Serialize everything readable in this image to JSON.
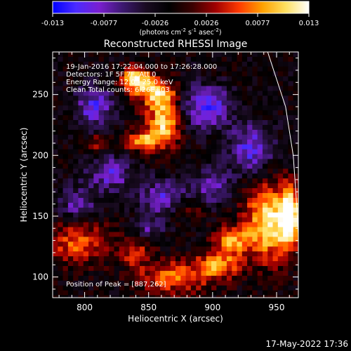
{
  "colors": {
    "background": "#000000",
    "foreground": "#ffffff",
    "limb": "#ffffff"
  },
  "colorbar": {
    "ticks": [
      "-0.013",
      "-0.0077",
      "-0.0026",
      "0.0026",
      "0.0077",
      "0.013"
    ],
    "units_prefix": "(photons cm",
    "exp1": "-2",
    "units_mid": " s",
    "exp2": "-1",
    "units_mid2": " asec",
    "exp3": "-2",
    "units_suffix": ")",
    "colormap": [
      "#0000ff",
      "#4b2bff",
      "#7a1fd0",
      "#3c1870",
      "#1a0b22",
      "#000000",
      "#3a0000",
      "#a00000",
      "#ff3a00",
      "#ffa000",
      "#ffe060",
      "#ffffff"
    ]
  },
  "chart_data": {
    "type": "heatmap",
    "title": "Reconstructed RHESSI Image",
    "xlabel": "Heliocentric X (arcsec)",
    "ylabel": "Heliocentric Y (arcsec)",
    "xlim": [
      775,
      967
    ],
    "ylim": [
      83,
      285
    ],
    "xticks": [
      800,
      850,
      900,
      950
    ],
    "yticks": [
      100,
      150,
      200,
      250
    ],
    "value_range": [
      -0.013,
      0.013
    ],
    "info_lines": [
      "19-Jan-2016 17:22:04.000 to 17:26:28.000",
      "Detectors: 1F 5F 7F, Att 0",
      "Energy Range: 12.0 - 25.0 keV",
      "Clean     Total counts: 6.26E+03"
    ],
    "peak_label": "Position of Peak = [887,262]",
    "peak": {
      "x": 887,
      "y": 262
    },
    "limb_points": [
      [
        943,
        285
      ],
      [
        957,
        240
      ],
      [
        963,
        200
      ],
      [
        965,
        170
      ],
      [
        967,
        135
      ]
    ],
    "sources": [
      {
        "x": 840,
        "y": 262,
        "sx": 8,
        "sy": 8,
        "amp": 0.013
      },
      {
        "x": 858,
        "y": 250,
        "sx": 10,
        "sy": 9,
        "amp": 0.012
      },
      {
        "x": 862,
        "y": 225,
        "sx": 9,
        "sy": 12,
        "amp": 0.012
      },
      {
        "x": 845,
        "y": 212,
        "sx": 10,
        "sy": 6,
        "amp": 0.01
      },
      {
        "x": 812,
        "y": 210,
        "sx": 6,
        "sy": 5,
        "amp": 0.006
      },
      {
        "x": 945,
        "y": 145,
        "sx": 14,
        "sy": 22,
        "amp": 0.013
      },
      {
        "x": 960,
        "y": 150,
        "sx": 5,
        "sy": 15,
        "amp": 0.013
      },
      {
        "x": 915,
        "y": 130,
        "sx": 10,
        "sy": 8,
        "amp": 0.009
      },
      {
        "x": 905,
        "y": 110,
        "sx": 12,
        "sy": 8,
        "amp": 0.009
      },
      {
        "x": 870,
        "y": 100,
        "sx": 20,
        "sy": 10,
        "amp": 0.008
      },
      {
        "x": 795,
        "y": 128,
        "sx": 18,
        "sy": 12,
        "amp": 0.008
      },
      {
        "x": 840,
        "y": 120,
        "sx": 8,
        "sy": 8,
        "amp": 0.006
      },
      {
        "x": 880,
        "y": 155,
        "sx": 8,
        "sy": 6,
        "amp": 0.005
      },
      {
        "x": 808,
        "y": 240,
        "sx": 10,
        "sy": 12,
        "amp": -0.008
      },
      {
        "x": 820,
        "y": 185,
        "sx": 12,
        "sy": 10,
        "amp": -0.007
      },
      {
        "x": 895,
        "y": 240,
        "sx": 14,
        "sy": 12,
        "amp": -0.009
      },
      {
        "x": 930,
        "y": 205,
        "sx": 12,
        "sy": 14,
        "amp": -0.008
      },
      {
        "x": 860,
        "y": 165,
        "sx": 14,
        "sy": 10,
        "amp": -0.007
      },
      {
        "x": 900,
        "y": 175,
        "sx": 10,
        "sy": 10,
        "amp": -0.006
      },
      {
        "x": 795,
        "y": 160,
        "sx": 10,
        "sy": 10,
        "amp": -0.006
      },
      {
        "x": 850,
        "y": 140,
        "sx": 8,
        "sy": 6,
        "amp": -0.005
      }
    ]
  },
  "footer": {
    "timestamp": "17-May-2022 17:36"
  }
}
